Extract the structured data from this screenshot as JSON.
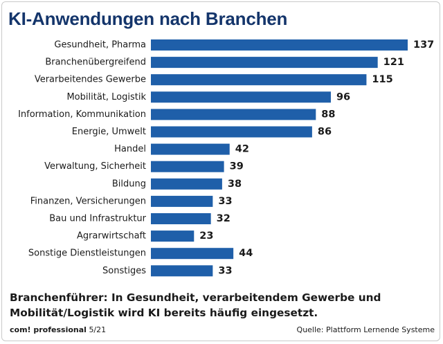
{
  "chart_data": {
    "type": "bar",
    "orientation": "horizontal",
    "title": "KI-Anwendungen nach Branchen",
    "categories": [
      "Gesundheit, Pharma",
      "Branchenübergreifend",
      "Verarbeitendes Gewerbe",
      "Mobilität, Logistik",
      "Information, Kommunikation",
      "Energie, Umwelt",
      "Handel",
      "Verwaltung, Sicherheit",
      "Bildung",
      "Finanzen, Versicherungen",
      "Bau und Infrastruktur",
      "Agrarwirtschaft",
      "Sonstige Dienstleistungen",
      "Sonstiges"
    ],
    "values": [
      137,
      121,
      115,
      96,
      88,
      86,
      42,
      39,
      38,
      33,
      32,
      23,
      44,
      33
    ],
    "xlim": [
      0,
      137
    ],
    "bar_color": "#1f5fa9",
    "grid": false
  },
  "caption": "Branchenführer: In Gesundheit, verarbeitendem Gewerbe und Mobilität/Logistik wird KI bereits häufig eingesetzt.",
  "footer": {
    "brand": "com! professional",
    "issue": "5/21",
    "source": "Quelle: Plattform Lernende Systeme"
  },
  "colors": {
    "title": "#14356b",
    "bar": "#1f5fa9",
    "text": "#1a1a1a"
  }
}
